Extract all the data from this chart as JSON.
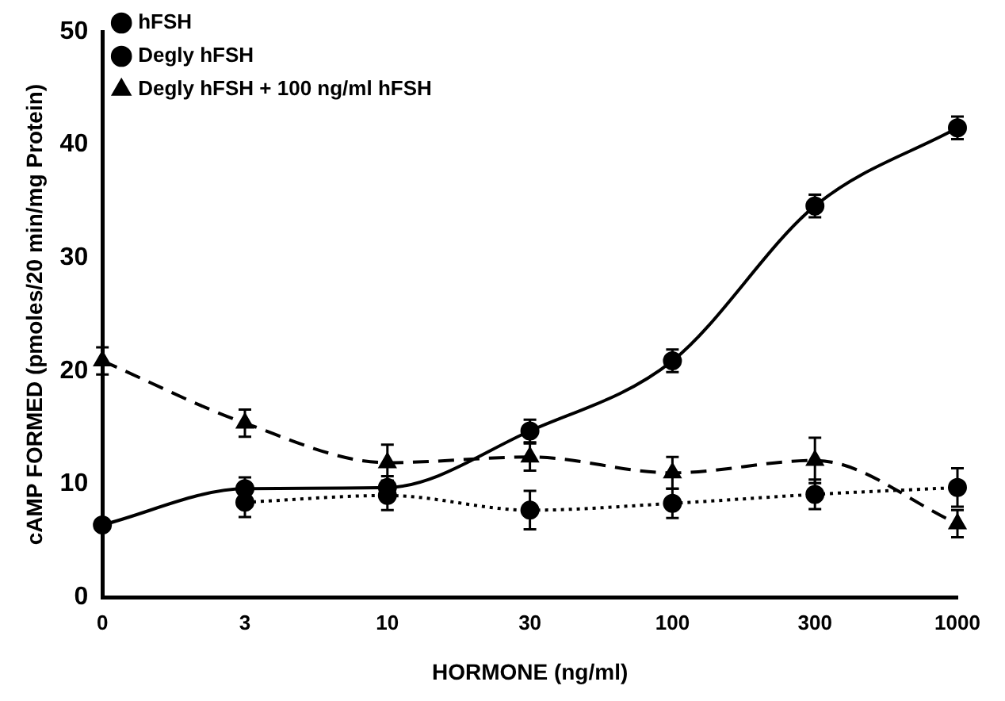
{
  "chart_data": {
    "type": "line",
    "xlabel": "HORMONE (ng/ml)",
    "ylabel": "cAMP FORMED (pmoles/20 min/mg Protein)",
    "categories": [
      "0",
      "3",
      "10",
      "30",
      "100",
      "300",
      "1000"
    ],
    "series": [
      {
        "name": "hFSH",
        "color": "#000000",
        "marker": "circle",
        "line_style": "solid",
        "values": [
          6.4,
          9.6,
          9.7,
          14.7,
          20.9,
          34.6,
          41.5
        ],
        "errors": [
          0.5,
          1,
          1,
          1,
          1,
          1,
          1
        ]
      },
      {
        "name": "Degly hFSH",
        "color": "#000000",
        "marker": "circle",
        "line_style": "dotted",
        "values": [
          null,
          8.4,
          9.0,
          7.7,
          8.3,
          9.1,
          9.7
        ],
        "errors": [
          null,
          1.3,
          1.3,
          1.7,
          1.3,
          1.3,
          1.7
        ]
      },
      {
        "name": "Degly hFSH + 100 ng/ml hFSH",
        "color": "#000000",
        "marker": "triangle",
        "line_style": "dashed",
        "values": [
          20.9,
          15.4,
          11.9,
          12.4,
          11.0,
          12.1,
          6.5
        ],
        "errors": [
          1.2,
          1.2,
          1.6,
          1.2,
          1.4,
          2.0,
          1.2
        ]
      }
    ],
    "ylim": [
      0,
      50
    ],
    "yticks": [
      0,
      10,
      20,
      30,
      40,
      50
    ],
    "grid": false,
    "legend": "top left"
  }
}
